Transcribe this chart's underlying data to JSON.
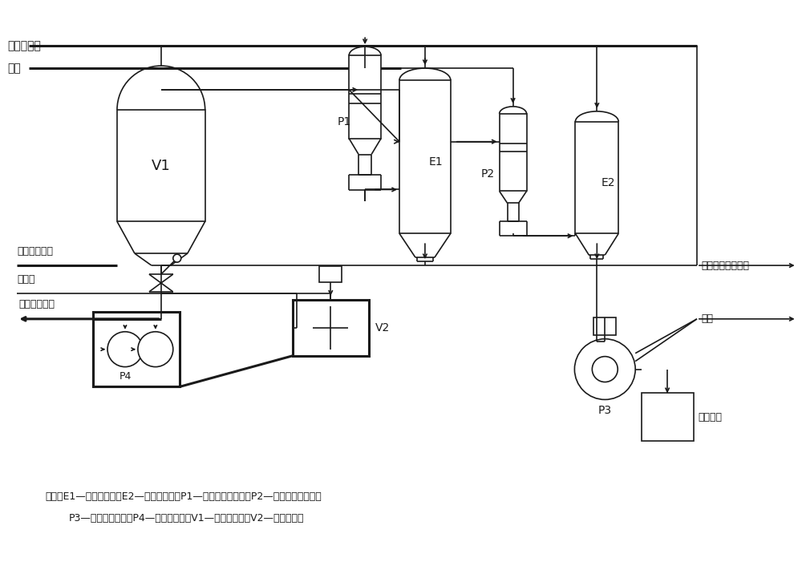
{
  "bg_color": "#ffffff",
  "line_color": "#1a1a1a",
  "lw": 1.2,
  "lw_thick": 2.2,
  "legend_line1": "图中：E1—一级冷凝器；E2—二级冷凝器；P1—一级蜀汽喷射器；P2—二级蜀汽喷射器；",
  "legend_line2": "P3—水环式真空泵；P4—结晶转料泵；V1—真空结晶器；V2—结晶料浆槽",
  "label_circ_lhsb": "循环冷凝水",
  "label_steam": "蜀汽",
  "label_left1": "鑂液来自沉降",
  "label_left2": "工艺水",
  "label_left3": "结晶料去过滤",
  "label_right1": "循环水回循环水槽",
  "label_right2": "排空",
  "label_right3": "去收集槽"
}
